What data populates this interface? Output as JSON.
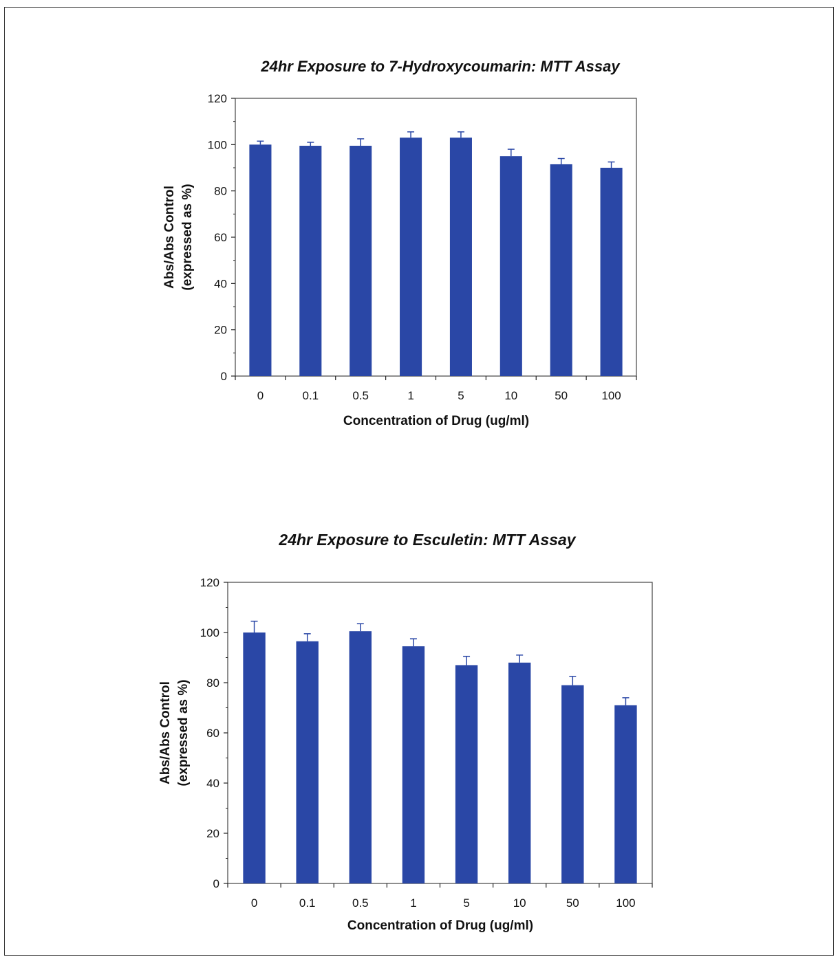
{
  "colors": {
    "bar": "#2a47a6",
    "error_bar": "#2a47a6",
    "axis": "#222222",
    "plot_border": "#444444"
  },
  "chart_data": [
    {
      "type": "bar",
      "title": "24hr Exposure to 7-Hydroxycoumarin: MTT Assay",
      "xlabel": "Concentration of Drug (ug/ml)",
      "ylabel_line1": "Abs/Abs Control",
      "ylabel_line2": "(expressed as %)",
      "categories": [
        "0",
        "0.1",
        "0.5",
        "1",
        "5",
        "10",
        "50",
        "100"
      ],
      "values": [
        100,
        99.5,
        99.5,
        103,
        103,
        95,
        91.5,
        90
      ],
      "errors": [
        1.5,
        1.5,
        3,
        2.5,
        2.5,
        3,
        2.5,
        2.5
      ],
      "ylim": [
        0,
        120
      ],
      "yticks": [
        0,
        20,
        40,
        60,
        80,
        100,
        120
      ],
      "grid": false,
      "legend": false
    },
    {
      "type": "bar",
      "title": "24hr Exposure to Esculetin: MTT Assay",
      "xlabel": "Concentration of Drug (ug/ml)",
      "ylabel_line1": "Abs/Abs Control",
      "ylabel_line2": "(expressed as %)",
      "categories": [
        "0",
        "0.1",
        "0.5",
        "1",
        "5",
        "10",
        "50",
        "100"
      ],
      "values": [
        100,
        96.5,
        100.5,
        94.5,
        87,
        88,
        79,
        71
      ],
      "errors": [
        4.5,
        3,
        3,
        3,
        3.5,
        3,
        3.5,
        3
      ],
      "ylim": [
        0,
        120
      ],
      "yticks": [
        0,
        20,
        40,
        60,
        80,
        100,
        120
      ],
      "grid": false,
      "legend": false
    }
  ]
}
